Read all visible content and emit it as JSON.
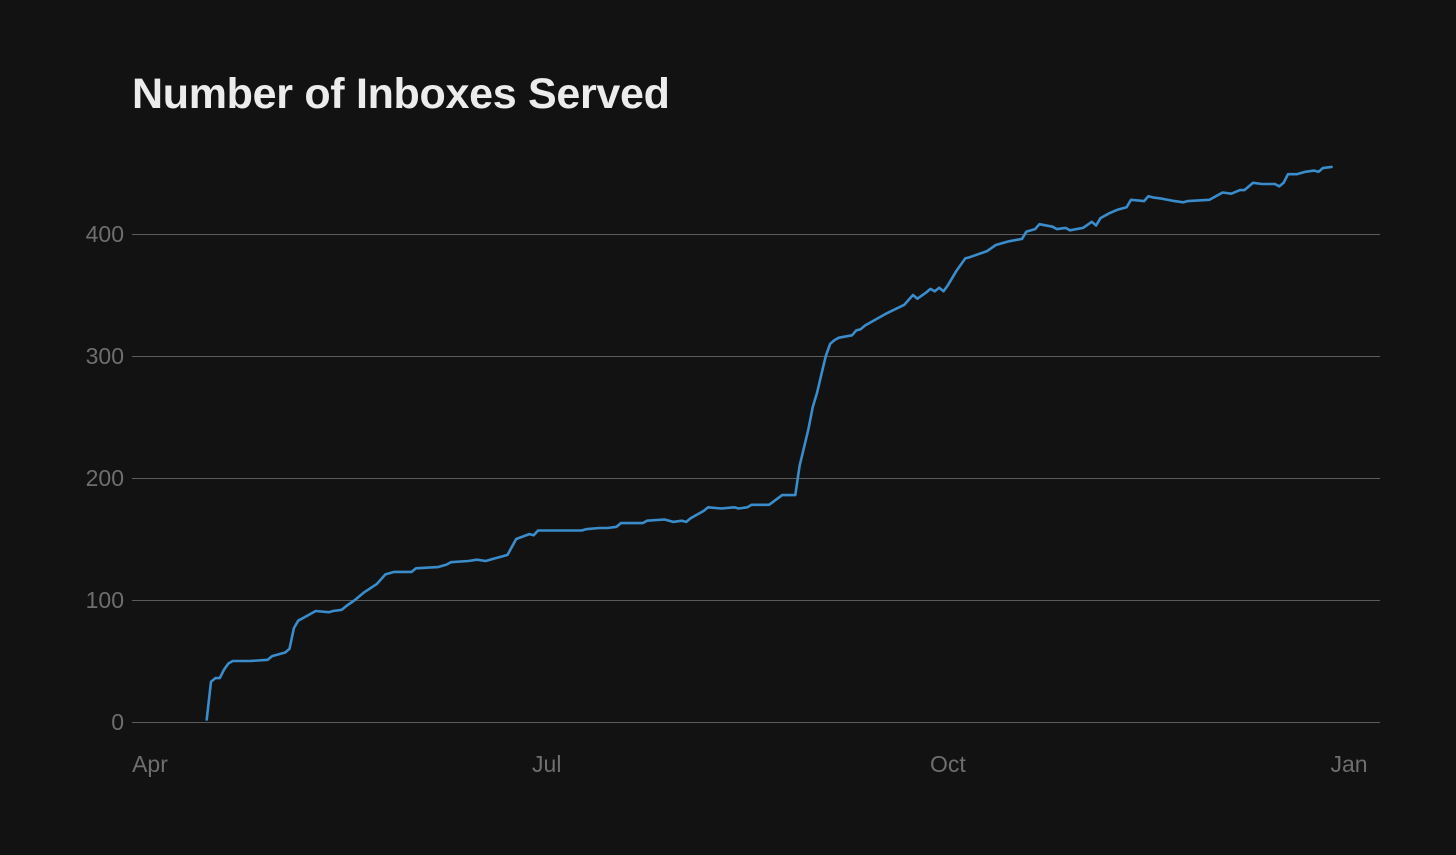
{
  "chart_data": {
    "type": "line",
    "title": "Number of Inboxes Served",
    "xlabel": "",
    "ylabel": "",
    "grid": true,
    "legend": "none",
    "x_ticks": [
      "Apr",
      "Jul",
      "Oct",
      "Jan"
    ],
    "y_ticks": [
      0,
      100,
      200,
      300,
      400
    ],
    "ylim": [
      0,
      490
    ],
    "series": [
      {
        "color": "#3a8cca",
        "points": [
          [
            "2023-04-14",
            2
          ],
          [
            "2023-04-15",
            33
          ],
          [
            "2023-04-16",
            36
          ],
          [
            "2023-04-17",
            36
          ],
          [
            "2023-04-18",
            43
          ],
          [
            "2023-04-19",
            48
          ],
          [
            "2023-04-20",
            50
          ],
          [
            "2023-04-24",
            50
          ],
          [
            "2023-04-28",
            51
          ],
          [
            "2023-04-29",
            54
          ],
          [
            "2023-05-02",
            57
          ],
          [
            "2023-05-03",
            60
          ],
          [
            "2023-05-04",
            77
          ],
          [
            "2023-05-05",
            83
          ],
          [
            "2023-05-07",
            87
          ],
          [
            "2023-05-09",
            91
          ],
          [
            "2023-05-12",
            90
          ],
          [
            "2023-05-13",
            91
          ],
          [
            "2023-05-15",
            92
          ],
          [
            "2023-05-16",
            95
          ],
          [
            "2023-05-18",
            100
          ],
          [
            "2023-05-20",
            106
          ],
          [
            "2023-05-23",
            113
          ],
          [
            "2023-05-25",
            121
          ],
          [
            "2023-05-27",
            123
          ],
          [
            "2023-05-31",
            123
          ],
          [
            "2023-06-01",
            126
          ],
          [
            "2023-06-06",
            127
          ],
          [
            "2023-06-08",
            129
          ],
          [
            "2023-06-09",
            131
          ],
          [
            "2023-06-13",
            132
          ],
          [
            "2023-06-15",
            133
          ],
          [
            "2023-06-17",
            132
          ],
          [
            "2023-06-19",
            134
          ],
          [
            "2023-06-21",
            136
          ],
          [
            "2023-06-22",
            137
          ],
          [
            "2023-06-24",
            150
          ],
          [
            "2023-06-27",
            154
          ],
          [
            "2023-06-28",
            153
          ],
          [
            "2023-06-29",
            157
          ],
          [
            "2023-07-03",
            157
          ],
          [
            "2023-07-09",
            157
          ],
          [
            "2023-07-10",
            158
          ],
          [
            "2023-07-13",
            159
          ],
          [
            "2023-07-15",
            159
          ],
          [
            "2023-07-17",
            160
          ],
          [
            "2023-07-18",
            163
          ],
          [
            "2023-07-23",
            163
          ],
          [
            "2023-07-24",
            165
          ],
          [
            "2023-07-28",
            166
          ],
          [
            "2023-07-30",
            164
          ],
          [
            "2023-08-01",
            165
          ],
          [
            "2023-08-02",
            164
          ],
          [
            "2023-08-03",
            167
          ],
          [
            "2023-08-06",
            173
          ],
          [
            "2023-08-07",
            176
          ],
          [
            "2023-08-10",
            175
          ],
          [
            "2023-08-13",
            176
          ],
          [
            "2023-08-14",
            175
          ],
          [
            "2023-08-16",
            176
          ],
          [
            "2023-08-17",
            178
          ],
          [
            "2023-08-21",
            178
          ],
          [
            "2023-08-24",
            186
          ],
          [
            "2023-08-27",
            186
          ],
          [
            "2023-08-28",
            210
          ],
          [
            "2023-08-29",
            225
          ],
          [
            "2023-08-30",
            240
          ],
          [
            "2023-08-31",
            258
          ],
          [
            "2023-09-01",
            270
          ],
          [
            "2023-09-02",
            285
          ],
          [
            "2023-09-03",
            300
          ],
          [
            "2023-09-04",
            310
          ],
          [
            "2023-09-05",
            313
          ],
          [
            "2023-09-06",
            315
          ],
          [
            "2023-09-09",
            317
          ],
          [
            "2023-09-10",
            321
          ],
          [
            "2023-09-11",
            322
          ],
          [
            "2023-09-12",
            325
          ],
          [
            "2023-09-17",
            335
          ],
          [
            "2023-09-21",
            342
          ],
          [
            "2023-09-22",
            346
          ],
          [
            "2023-09-23",
            350
          ],
          [
            "2023-09-24",
            347
          ],
          [
            "2023-09-26",
            352
          ],
          [
            "2023-09-27",
            355
          ],
          [
            "2023-09-28",
            353
          ],
          [
            "2023-09-29",
            356
          ],
          [
            "2023-09-30",
            353
          ],
          [
            "2023-10-01",
            358
          ],
          [
            "2023-10-03",
            370
          ],
          [
            "2023-10-05",
            380
          ],
          [
            "2023-10-06",
            381
          ],
          [
            "2023-10-10",
            386
          ],
          [
            "2023-10-12",
            391
          ],
          [
            "2023-10-13",
            392
          ],
          [
            "2023-10-15",
            394
          ],
          [
            "2023-10-18",
            396
          ],
          [
            "2023-10-19",
            402
          ],
          [
            "2023-10-21",
            404
          ],
          [
            "2023-10-22",
            408
          ],
          [
            "2023-10-25",
            406
          ],
          [
            "2023-10-26",
            404
          ],
          [
            "2023-10-28",
            405
          ],
          [
            "2023-10-29",
            403
          ],
          [
            "2023-11-01",
            405
          ],
          [
            "2023-11-03",
            410
          ],
          [
            "2023-11-04",
            407
          ],
          [
            "2023-11-05",
            413
          ],
          [
            "2023-11-07",
            417
          ],
          [
            "2023-11-09",
            420
          ],
          [
            "2023-11-11",
            422
          ],
          [
            "2023-11-12",
            428
          ],
          [
            "2023-11-15",
            427
          ],
          [
            "2023-11-16",
            431
          ],
          [
            "2023-11-17",
            430
          ],
          [
            "2023-11-19",
            429
          ],
          [
            "2023-11-22",
            427
          ],
          [
            "2023-11-24",
            426
          ],
          [
            "2023-11-25",
            427
          ],
          [
            "2023-11-30",
            428
          ],
          [
            "2023-12-03",
            434
          ],
          [
            "2023-12-05",
            433
          ],
          [
            "2023-12-07",
            436
          ],
          [
            "2023-12-08",
            436
          ],
          [
            "2023-12-10",
            442
          ],
          [
            "2023-12-12",
            441
          ],
          [
            "2023-12-15",
            441
          ],
          [
            "2023-12-16",
            439
          ],
          [
            "2023-12-17",
            442
          ],
          [
            "2023-12-18",
            449
          ],
          [
            "2023-12-20",
            449
          ],
          [
            "2023-12-22",
            451
          ],
          [
            "2023-12-24",
            452
          ],
          [
            "2023-12-25",
            451
          ],
          [
            "2023-12-26",
            454
          ],
          [
            "2023-12-28",
            455
          ]
        ]
      }
    ]
  }
}
